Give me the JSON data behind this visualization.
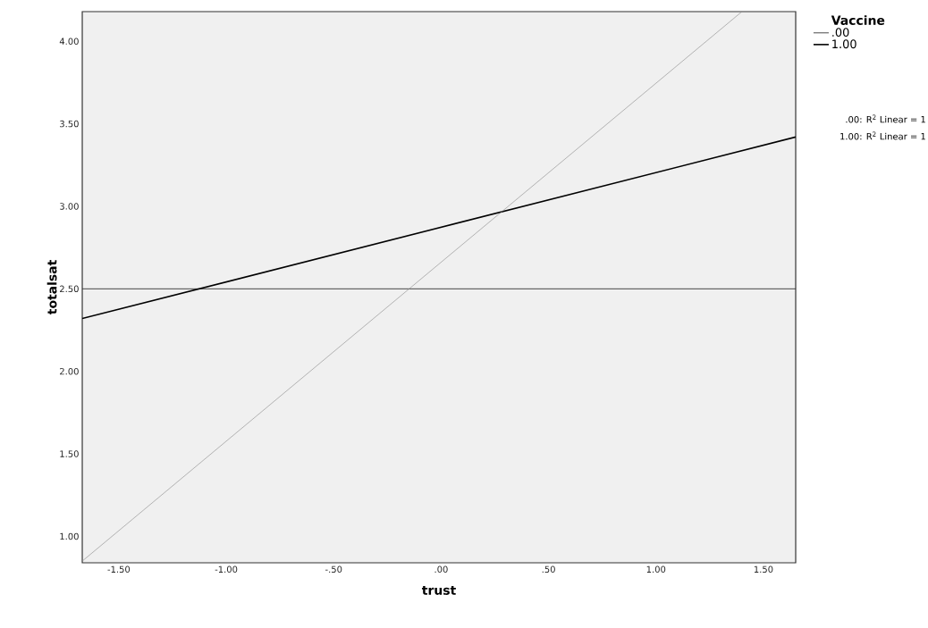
{
  "chart_data": {
    "type": "line",
    "xlabel": "trust",
    "ylabel": "totalsat",
    "legend_title": "Vaccine",
    "xlim": [
      -1.67,
      1.65
    ],
    "ylim": [
      0.84,
      4.18
    ],
    "xticks": [
      {
        "value": -1.5,
        "label": "-1.50"
      },
      {
        "value": -1.0,
        "label": "-1.00"
      },
      {
        "value": -0.5,
        "label": "-.50"
      },
      {
        "value": 0,
        "label": ".00"
      },
      {
        "value": 0.5,
        "label": ".50"
      },
      {
        "value": 1.0,
        "label": "1.00"
      },
      {
        "value": 1.5,
        "label": "1.50"
      }
    ],
    "yticks": [
      {
        "value": 1.0,
        "label": "1.00"
      },
      {
        "value": 1.5,
        "label": "1.50"
      },
      {
        "value": 2.0,
        "label": "2.00"
      },
      {
        "value": 2.5,
        "label": "2.50"
      },
      {
        "value": 3.0,
        "label": "3.00"
      },
      {
        "value": 3.5,
        "label": "3.50"
      },
      {
        "value": 4.0,
        "label": "4.00"
      }
    ],
    "series": [
      {
        "name": ".00",
        "color": "#333333",
        "x": [
          -1.67,
          1.65
        ],
        "values": [
          2.5,
          2.5
        ]
      },
      {
        "name": "1.00",
        "color": "#000000",
        "x": [
          -1.67,
          1.65
        ],
        "values": [
          2.32,
          3.42
        ]
      },
      {
        "color": "#888888",
        "x": [
          -1.67,
          1.4
        ],
        "values": [
          0.85,
          4.18
        ]
      }
    ],
    "annotations": [
      ".00: R$^{2}$ Linear = 1",
      "1.00: R$^{2}$ Linear = 1"
    ],
    "legend": "top right",
    "marker": "none",
    "line_style": "solid",
    "grid": false
  }
}
